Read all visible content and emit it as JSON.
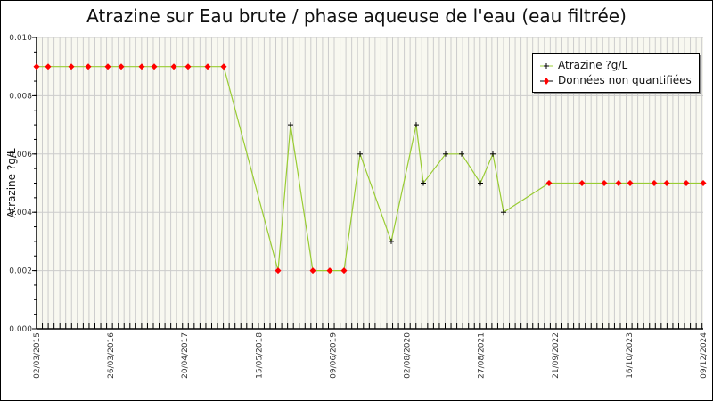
{
  "chart_data": {
    "type": "line",
    "title": "Atrazine sur Eau brute / phase aqueuse de l'eau (eau filtrée)",
    "xlabel": "",
    "ylabel": "Atrazine ?g/L",
    "ylim": [
      0,
      0.01
    ],
    "yticks": [
      "0.000",
      "0.002",
      "0.004",
      "0.006",
      "0.008",
      "0.010"
    ],
    "xticks": [
      "02/03/2015",
      "26/03/2016",
      "20/04/2017",
      "15/05/2018",
      "09/06/2019",
      "02/08/2020",
      "27/08/2021",
      "21/09/2022",
      "16/10/2023",
      "09/12/2024"
    ],
    "grid": true,
    "legend_position": "top-right",
    "series": [
      {
        "name": "Atrazine ?g/L",
        "color": "#99cc33",
        "points": [
          {
            "x": 41,
            "y": 0.009,
            "nq": true
          },
          {
            "x": 54,
            "y": 0.009,
            "nq": true
          },
          {
            "x": 80,
            "y": 0.009,
            "nq": true
          },
          {
            "x": 99,
            "y": 0.009,
            "nq": true
          },
          {
            "x": 121,
            "y": 0.009,
            "nq": true
          },
          {
            "x": 136,
            "y": 0.009,
            "nq": true
          },
          {
            "x": 159,
            "y": 0.009,
            "nq": true
          },
          {
            "x": 173,
            "y": 0.009,
            "nq": true
          },
          {
            "x": 195,
            "y": 0.009,
            "nq": true
          },
          {
            "x": 211,
            "y": 0.009,
            "nq": true
          },
          {
            "x": 233,
            "y": 0.009,
            "nq": true
          },
          {
            "x": 251,
            "y": 0.009,
            "nq": true
          },
          {
            "x": 312,
            "y": 0.002,
            "nq": true
          },
          {
            "x": 326,
            "y": 0.007,
            "nq": false
          },
          {
            "x": 351,
            "y": 0.002,
            "nq": true
          },
          {
            "x": 370,
            "y": 0.002,
            "nq": true
          },
          {
            "x": 386,
            "y": 0.002,
            "nq": true
          },
          {
            "x": 404,
            "y": 0.006,
            "nq": false
          },
          {
            "x": 439,
            "y": 0.003,
            "nq": false
          },
          {
            "x": 467,
            "y": 0.007,
            "nq": false
          },
          {
            "x": 475,
            "y": 0.005,
            "nq": false
          },
          {
            "x": 500,
            "y": 0.006,
            "nq": false
          },
          {
            "x": 518,
            "y": 0.006,
            "nq": false
          },
          {
            "x": 539,
            "y": 0.005,
            "nq": false
          },
          {
            "x": 553,
            "y": 0.006,
            "nq": false
          },
          {
            "x": 565,
            "y": 0.004,
            "nq": false
          },
          {
            "x": 616,
            "y": 0.005,
            "nq": true
          },
          {
            "x": 653,
            "y": 0.005,
            "nq": true
          },
          {
            "x": 678,
            "y": 0.005,
            "nq": true
          },
          {
            "x": 694,
            "y": 0.005,
            "nq": true
          },
          {
            "x": 707,
            "y": 0.005,
            "nq": true
          },
          {
            "x": 734,
            "y": 0.005,
            "nq": true
          },
          {
            "x": 748,
            "y": 0.005,
            "nq": true
          },
          {
            "x": 770,
            "y": 0.005,
            "nq": true
          },
          {
            "x": 789,
            "y": 0.005,
            "nq": true
          }
        ]
      }
    ],
    "legend": [
      {
        "label": "Atrazine ?g/L",
        "marker": "black-plus",
        "line_color": "#99cc33"
      },
      {
        "label": "Données non quantifiées",
        "marker": "red-diamond",
        "line_color": "#ff0000"
      }
    ]
  },
  "colors": {
    "plot_bg": "#f8f8f0",
    "grid": "#cccccc",
    "line": "#99cc33",
    "nq_marker": "#ff0000",
    "q_marker": "#000000"
  }
}
